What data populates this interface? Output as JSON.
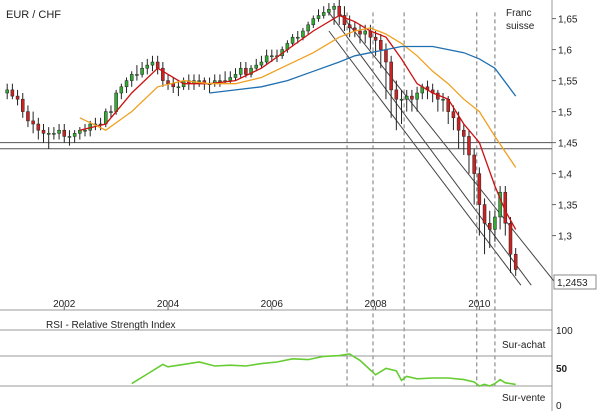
{
  "chart_data": [
    {
      "type": "candlestick",
      "title": "EUR / CHF",
      "ylabel": "Franc suisse",
      "ylim": [
        1.18,
        1.68
      ],
      "y_ticks": [
        "1,65",
        "1,6",
        "1,55",
        "1,5",
        "1,45",
        "1,4",
        "1,35",
        "1,3"
      ],
      "y_tick_values": [
        1.65,
        1.6,
        1.55,
        1.5,
        1.45,
        1.4,
        1.35,
        1.3
      ],
      "x_ticks": [
        "2002",
        "2004",
        "2006",
        "2008",
        "2010"
      ],
      "x_tick_values": [
        2002,
        2004,
        2006,
        2008,
        2010
      ],
      "xlim": [
        2000.8,
        2011.4
      ],
      "last_price_label": "1,2453",
      "last_price": 1.2453,
      "support_levels": [
        1.45,
        1.44
      ],
      "channel_lines": [
        {
          "from": [
            2007.1,
            1.63
          ],
          "to": [
            2010.8,
            1.22
          ]
        },
        {
          "from": [
            2007.1,
            1.66
          ],
          "to": [
            2011.0,
            1.22
          ]
        },
        {
          "from": [
            2007.3,
            1.66
          ],
          "to": [
            2011.5,
            1.22
          ]
        }
      ],
      "marker_dates": [
        2007.45,
        2007.95,
        2008.55,
        2009.95,
        2010.3
      ],
      "series": [
        {
          "kind": "ohlc",
          "x": [
            2000.9,
            2001.0,
            2001.1,
            2001.2,
            2001.3,
            2001.4,
            2001.5,
            2001.6,
            2001.7,
            2001.8,
            2001.9,
            2002.0,
            2002.1,
            2002.2,
            2002.3,
            2002.4,
            2002.5,
            2002.6,
            2002.7,
            2002.8,
            2002.9,
            2003.0,
            2003.1,
            2003.2,
            2003.3,
            2003.4,
            2003.5,
            2003.6,
            2003.7,
            2003.8,
            2003.9,
            2004.0,
            2004.1,
            2004.2,
            2004.3,
            2004.4,
            2004.5,
            2004.6,
            2004.7,
            2004.8,
            2004.9,
            2005.0,
            2005.1,
            2005.2,
            2005.3,
            2005.4,
            2005.5,
            2005.6,
            2005.7,
            2005.8,
            2005.9,
            2006.0,
            2006.1,
            2006.2,
            2006.3,
            2006.4,
            2006.5,
            2006.6,
            2006.7,
            2006.8,
            2006.9,
            2007.0,
            2007.1,
            2007.2,
            2007.3,
            2007.4,
            2007.5,
            2007.6,
            2007.7,
            2007.8,
            2007.9,
            2008.0,
            2008.1,
            2008.2,
            2008.3,
            2008.4,
            2008.5,
            2008.6,
            2008.7,
            2008.8,
            2008.9,
            2009.0,
            2009.1,
            2009.2,
            2009.3,
            2009.4,
            2009.5,
            2009.6,
            2009.7,
            2009.8,
            2009.9,
            2010.0,
            2010.1,
            2010.2,
            2010.3,
            2010.4,
            2010.5,
            2010.6,
            2010.7
          ],
          "open": [
            1.53,
            1.535,
            1.525,
            1.52,
            1.5,
            1.485,
            1.48,
            1.47,
            1.465,
            1.465,
            1.465,
            1.47,
            1.46,
            1.46,
            1.465,
            1.47,
            1.47,
            1.48,
            1.48,
            1.48,
            1.5,
            1.5,
            1.53,
            1.54,
            1.55,
            1.56,
            1.56,
            1.57,
            1.575,
            1.58,
            1.57,
            1.55,
            1.545,
            1.54,
            1.54,
            1.55,
            1.545,
            1.55,
            1.55,
            1.545,
            1.545,
            1.55,
            1.55,
            1.55,
            1.555,
            1.56,
            1.57,
            1.56,
            1.57,
            1.575,
            1.58,
            1.59,
            1.59,
            1.59,
            1.6,
            1.61,
            1.62,
            1.62,
            1.63,
            1.64,
            1.65,
            1.655,
            1.66,
            1.665,
            1.67,
            1.655,
            1.64,
            1.635,
            1.63,
            1.625,
            1.63,
            1.62,
            1.615,
            1.6,
            1.58,
            1.535,
            1.52,
            1.52,
            1.525,
            1.52,
            1.53,
            1.54,
            1.535,
            1.53,
            1.52,
            1.52,
            1.5,
            1.49,
            1.47,
            1.46,
            1.43,
            1.4,
            1.35,
            1.32,
            1.31,
            1.33,
            1.37,
            1.32,
            1.27
          ],
          "high": [
            1.545,
            1.545,
            1.535,
            1.53,
            1.51,
            1.5,
            1.49,
            1.48,
            1.475,
            1.475,
            1.48,
            1.48,
            1.47,
            1.47,
            1.475,
            1.48,
            1.485,
            1.49,
            1.49,
            1.505,
            1.51,
            1.535,
            1.545,
            1.555,
            1.565,
            1.575,
            1.58,
            1.585,
            1.59,
            1.59,
            1.58,
            1.56,
            1.555,
            1.55,
            1.555,
            1.56,
            1.56,
            1.56,
            1.555,
            1.555,
            1.56,
            1.56,
            1.565,
            1.565,
            1.57,
            1.58,
            1.58,
            1.575,
            1.585,
            1.59,
            1.6,
            1.6,
            1.6,
            1.605,
            1.615,
            1.625,
            1.63,
            1.635,
            1.645,
            1.655,
            1.665,
            1.67,
            1.675,
            1.675,
            1.68,
            1.67,
            1.655,
            1.645,
            1.64,
            1.64,
            1.64,
            1.63,
            1.625,
            1.61,
            1.59,
            1.55,
            1.535,
            1.535,
            1.535,
            1.54,
            1.545,
            1.55,
            1.545,
            1.535,
            1.53,
            1.525,
            1.51,
            1.5,
            1.48,
            1.47,
            1.44,
            1.41,
            1.36,
            1.34,
            1.34,
            1.38,
            1.38,
            1.33,
            1.28
          ],
          "low": [
            1.52,
            1.52,
            1.51,
            1.49,
            1.475,
            1.465,
            1.455,
            1.45,
            1.44,
            1.455,
            1.455,
            1.45,
            1.445,
            1.45,
            1.455,
            1.46,
            1.46,
            1.47,
            1.47,
            1.475,
            1.49,
            1.495,
            1.52,
            1.53,
            1.54,
            1.55,
            1.555,
            1.56,
            1.565,
            1.56,
            1.54,
            1.535,
            1.53,
            1.525,
            1.535,
            1.535,
            1.535,
            1.54,
            1.535,
            1.53,
            1.54,
            1.54,
            1.545,
            1.545,
            1.55,
            1.555,
            1.555,
            1.555,
            1.565,
            1.57,
            1.575,
            1.58,
            1.58,
            1.585,
            1.595,
            1.605,
            1.61,
            1.615,
            1.625,
            1.635,
            1.645,
            1.65,
            1.655,
            1.64,
            1.64,
            1.63,
            1.62,
            1.62,
            1.61,
            1.61,
            1.6,
            1.59,
            1.57,
            1.52,
            1.49,
            1.47,
            1.48,
            1.5,
            1.5,
            1.5,
            1.52,
            1.52,
            1.515,
            1.5,
            1.5,
            1.48,
            1.47,
            1.44,
            1.43,
            1.4,
            1.35,
            1.3,
            1.27,
            1.28,
            1.29,
            1.31,
            1.3,
            1.24,
            1.235
          ],
          "close": [
            1.535,
            1.525,
            1.52,
            1.5,
            1.485,
            1.48,
            1.47,
            1.465,
            1.465,
            1.465,
            1.47,
            1.46,
            1.46,
            1.465,
            1.47,
            1.47,
            1.48,
            1.48,
            1.48,
            1.5,
            1.5,
            1.53,
            1.54,
            1.55,
            1.56,
            1.56,
            1.57,
            1.575,
            1.58,
            1.57,
            1.55,
            1.545,
            1.54,
            1.54,
            1.55,
            1.545,
            1.55,
            1.55,
            1.545,
            1.545,
            1.55,
            1.55,
            1.55,
            1.555,
            1.56,
            1.57,
            1.56,
            1.57,
            1.575,
            1.58,
            1.59,
            1.59,
            1.59,
            1.6,
            1.61,
            1.62,
            1.62,
            1.63,
            1.64,
            1.65,
            1.655,
            1.66,
            1.665,
            1.67,
            1.655,
            1.64,
            1.635,
            1.63,
            1.625,
            1.63,
            1.62,
            1.615,
            1.6,
            1.58,
            1.535,
            1.52,
            1.52,
            1.525,
            1.52,
            1.53,
            1.54,
            1.535,
            1.53,
            1.52,
            1.52,
            1.5,
            1.49,
            1.47,
            1.46,
            1.43,
            1.4,
            1.35,
            1.32,
            1.31,
            1.33,
            1.37,
            1.32,
            1.27,
            1.2453
          ]
        },
        {
          "kind": "line",
          "color": "#cc1111",
          "x": [
            2002.3,
            2002.8,
            2003.3,
            2003.8,
            2004.3,
            2004.8,
            2005.3,
            2005.8,
            2006.3,
            2006.8,
            2007.3,
            2007.6,
            2007.9,
            2008.2,
            2008.5,
            2008.8,
            2009.1,
            2009.4,
            2009.7,
            2010.0,
            2010.3,
            2010.5,
            2010.7
          ],
          "values": [
            1.47,
            1.48,
            1.53,
            1.57,
            1.545,
            1.545,
            1.55,
            1.57,
            1.6,
            1.63,
            1.655,
            1.645,
            1.63,
            1.62,
            1.585,
            1.545,
            1.53,
            1.52,
            1.48,
            1.45,
            1.38,
            1.34,
            1.31
          ]
        },
        {
          "kind": "line",
          "color": "#f0a020",
          "x": [
            2002.3,
            2002.8,
            2003.3,
            2003.8,
            2004.3,
            2004.8,
            2005.3,
            2005.8,
            2006.3,
            2006.8,
            2007.3,
            2007.6,
            2007.9,
            2008.2,
            2008.5,
            2008.8,
            2009.1,
            2009.4,
            2009.7,
            2010.0,
            2010.3,
            2010.7
          ],
          "values": [
            1.49,
            1.47,
            1.5,
            1.54,
            1.55,
            1.545,
            1.545,
            1.555,
            1.575,
            1.595,
            1.62,
            1.63,
            1.635,
            1.625,
            1.61,
            1.59,
            1.565,
            1.545,
            1.52,
            1.5,
            1.46,
            1.41
          ]
        },
        {
          "kind": "line",
          "color": "#1f6fb0",
          "x": [
            2004.8,
            2005.3,
            2005.8,
            2006.3,
            2006.8,
            2007.3,
            2007.6,
            2007.9,
            2008.2,
            2008.5,
            2008.8,
            2009.1,
            2009.4,
            2009.7,
            2010.0,
            2010.3,
            2010.7
          ],
          "values": [
            1.53,
            1.535,
            1.54,
            1.55,
            1.565,
            1.58,
            1.59,
            1.595,
            1.6,
            1.605,
            1.605,
            1.605,
            1.6,
            1.595,
            1.585,
            1.57,
            1.525
          ]
        }
      ]
    },
    {
      "type": "line",
      "title": "RSI - Relative Strength Index",
      "ylim": [
        0,
        100
      ],
      "y_ticks": [
        "100",
        "50",
        "0"
      ],
      "y_tick_values": [
        100,
        50,
        0
      ],
      "zone_labels": [
        "Sur-achat",
        "Sur-vente"
      ],
      "overbought": 70,
      "oversold": 30,
      "series": [
        {
          "color": "#66cc33",
          "x": [
            2003.3,
            2003.6,
            2003.9,
            2004.0,
            2004.3,
            2004.6,
            2004.9,
            2005.2,
            2005.5,
            2005.8,
            2006.1,
            2006.4,
            2006.7,
            2007.0,
            2007.3,
            2007.5,
            2007.7,
            2007.9,
            2008.0,
            2008.2,
            2008.4,
            2008.5,
            2008.6,
            2008.8,
            2009.1,
            2009.4,
            2009.7,
            2009.9,
            2010.0,
            2010.1,
            2010.2,
            2010.3,
            2010.4,
            2010.5,
            2010.7
          ],
          "values": [
            33,
            45,
            57,
            54,
            57,
            60,
            55,
            56,
            55,
            58,
            60,
            64,
            63,
            67,
            68,
            70,
            62,
            50,
            44,
            52,
            49,
            37,
            42,
            39,
            40,
            40,
            38,
            35,
            30,
            32,
            30,
            33,
            38,
            34,
            32
          ]
        }
      ]
    }
  ]
}
